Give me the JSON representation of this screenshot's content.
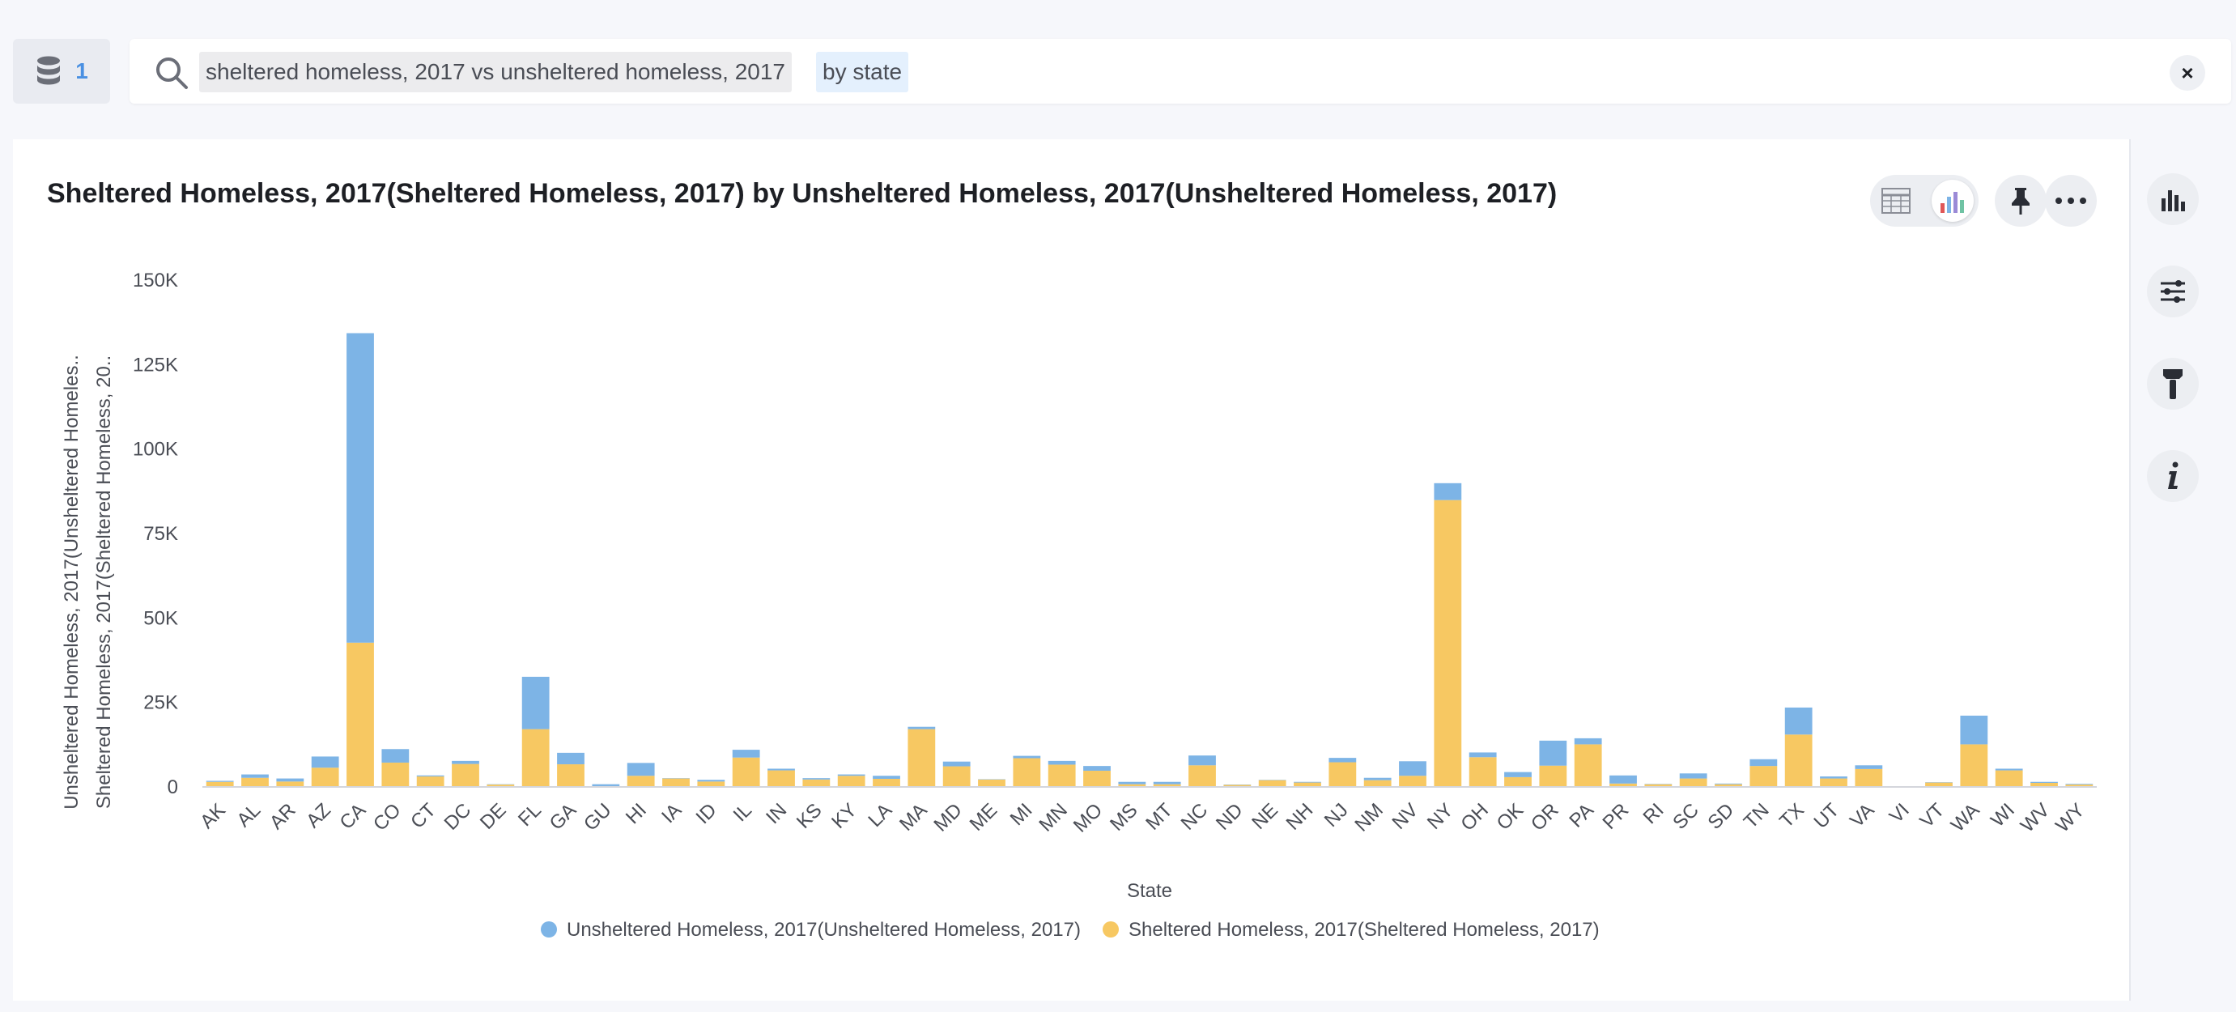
{
  "datasource": {
    "count": "1",
    "icon": "database-icon"
  },
  "search": {
    "measure_token": "sheltered homeless, 2017 vs unsheltered homeless, 2017",
    "attribute_token": "by state",
    "clear_label": "×",
    "icon": "search-icon"
  },
  "toolbar": {
    "view_toggle": [
      "table-icon",
      "chart-icon"
    ],
    "active_view": "chart",
    "pin_icon": "pin-icon",
    "more_icon": "more-icon"
  },
  "side_rail": [
    "chart-type-icon",
    "settings-icon",
    "format-brush-icon",
    "info-icon"
  ],
  "colors": {
    "unsheltered": "#7db4e6",
    "sheltered": "#f7c862",
    "accent": "#4a90e2"
  },
  "chart_data": {
    "type": "bar",
    "stacked": true,
    "title": "Sheltered Homeless, 2017(Sheltered Homeless, 2017) by Unsheltered Homeless, 2017(Unsheltered Homeless, 2017)",
    "xlabel": "State",
    "ylabel_lines": [
      "Unsheltered Homeless, 2017(Unsheltered Homeles..",
      "Sheltered Homeless, 2017(Sheltered Homeless, 20.."
    ],
    "ylim": [
      0,
      150000
    ],
    "yticks": [
      0,
      25000,
      50000,
      75000,
      100000,
      125000,
      150000
    ],
    "ytick_labels": [
      "0",
      "25K",
      "50K",
      "75K",
      "100K",
      "125K",
      "150K"
    ],
    "grid": false,
    "legend_position": "bottom",
    "categories": [
      "AK",
      "AL",
      "AR",
      "AZ",
      "CA",
      "CO",
      "CT",
      "DC",
      "DE",
      "FL",
      "GA",
      "GU",
      "HI",
      "IA",
      "ID",
      "IL",
      "IN",
      "KS",
      "KY",
      "LA",
      "MA",
      "MD",
      "ME",
      "MI",
      "MN",
      "MO",
      "MS",
      "MT",
      "NC",
      "ND",
      "NE",
      "NH",
      "NJ",
      "NM",
      "NV",
      "NY",
      "OH",
      "OK",
      "OR",
      "PA",
      "PR",
      "RI",
      "SC",
      "SD",
      "TN",
      "TX",
      "UT",
      "VA",
      "VI",
      "VT",
      "WA",
      "WI",
      "WV",
      "WY"
    ],
    "series": [
      {
        "name": "Unsheltered Homeless, 2017(Unsheltered Homeless, 2017)",
        "color": "#7db4e6",
        "values": [
          300,
          1000,
          900,
          3300,
          91600,
          4000,
          300,
          900,
          100,
          15500,
          3400,
          600,
          3800,
          100,
          500,
          2300,
          500,
          400,
          400,
          900,
          700,
          1400,
          100,
          700,
          1100,
          1400,
          700,
          700,
          2900,
          100,
          100,
          200,
          1300,
          700,
          4300,
          5000,
          1400,
          1500,
          7400,
          1800,
          2400,
          100,
          1500,
          200,
          2000,
          8000,
          600,
          1100,
          100,
          100,
          8500,
          500,
          300,
          200
        ]
      },
      {
        "name": "Sheltered Homeless, 2017(Sheltered Homeless, 2017)",
        "color": "#f7c862",
        "values": [
          1500,
          2700,
          1600,
          5700,
          42700,
          7200,
          3100,
          6800,
          700,
          17100,
          6700,
          200,
          3300,
          2500,
          1600,
          8700,
          4900,
          2200,
          3300,
          2400,
          17100,
          6100,
          2200,
          8500,
          6600,
          4800,
          800,
          800,
          6400,
          600,
          2000,
          1300,
          7300,
          2000,
          3300,
          84900,
          8800,
          2900,
          6300,
          12600,
          1000,
          800,
          2500,
          800,
          6200,
          15500,
          2500,
          5300,
          0,
          1300,
          12600,
          4900,
          1200,
          700
        ]
      }
    ]
  }
}
